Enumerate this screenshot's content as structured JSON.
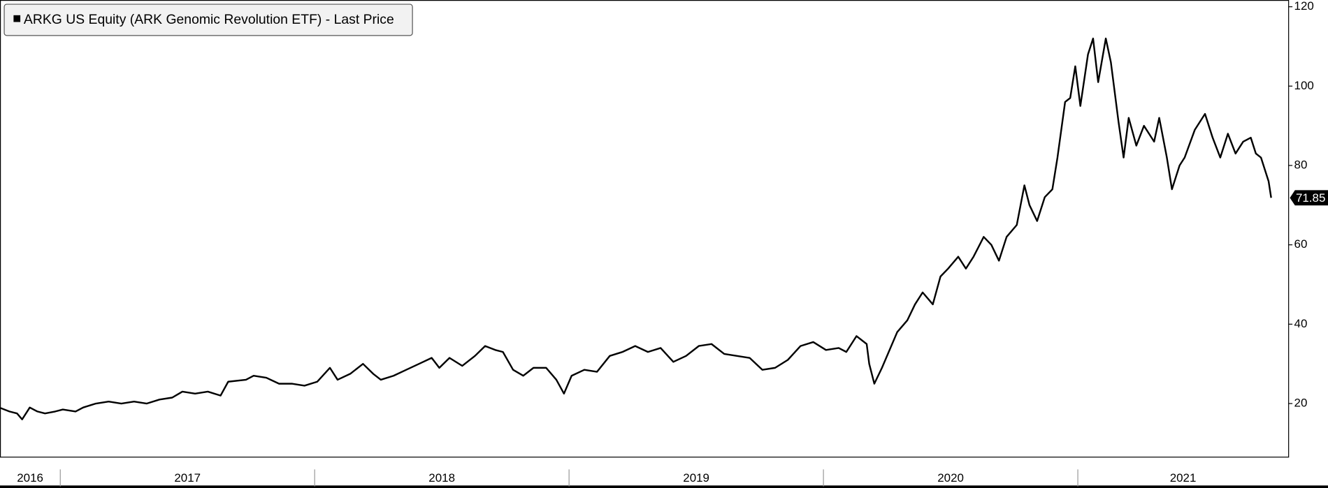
{
  "chart_data": {
    "type": "line",
    "x": [
      2016.76,
      2016.8,
      2016.83,
      2016.85,
      2016.88,
      2016.91,
      2016.94,
      2016.98,
      2017.01,
      2017.06,
      2017.09,
      2017.14,
      2017.19,
      2017.24,
      2017.29,
      2017.34,
      2017.39,
      2017.44,
      2017.48,
      2017.53,
      2017.58,
      2017.63,
      2017.66,
      2017.73,
      2017.76,
      2017.81,
      2017.86,
      2017.91,
      2017.96,
      2018.01,
      2018.06,
      2018.09,
      2018.14,
      2018.19,
      2018.23,
      2018.26,
      2018.31,
      2018.36,
      2018.41,
      2018.46,
      2018.49,
      2018.53,
      2018.58,
      2018.63,
      2018.67,
      2018.71,
      2018.74,
      2018.78,
      2018.82,
      2018.86,
      2018.91,
      2018.95,
      2018.98,
      2019.01,
      2019.06,
      2019.11,
      2019.16,
      2019.21,
      2019.26,
      2019.31,
      2019.36,
      2019.41,
      2019.46,
      2019.51,
      2019.56,
      2019.61,
      2019.66,
      2019.71,
      2019.76,
      2019.81,
      2019.86,
      2019.91,
      2019.96,
      2020.01,
      2020.06,
      2020.09,
      2020.13,
      2020.17,
      2020.18,
      2020.2,
      2020.23,
      2020.25,
      2020.29,
      2020.33,
      2020.36,
      2020.39,
      2020.43,
      2020.46,
      2020.49,
      2020.53,
      2020.56,
      2020.59,
      2020.63,
      2020.66,
      2020.69,
      2020.72,
      2020.76,
      2020.79,
      2020.81,
      2020.84,
      2020.87,
      2020.9,
      2020.92,
      2020.95,
      2020.97,
      2020.99,
      2021.01,
      2021.04,
      2021.06,
      2021.08,
      2021.11,
      2021.13,
      2021.16,
      2021.18,
      2021.2,
      2021.23,
      2021.26,
      2021.3,
      2021.32,
      2021.35,
      2021.37,
      2021.4,
      2021.42,
      2021.46,
      2021.5,
      2021.53,
      2021.56,
      2021.59,
      2021.62,
      2021.65,
      2021.68,
      2021.7,
      2021.72,
      2021.75,
      2021.76
    ],
    "series": [
      {
        "name": "ARKG US Equity (ARK Genomic Revolution ETF) - Last Price",
        "color": "#000000",
        "values": [
          19,
          18,
          17.5,
          16,
          19,
          18,
          17.5,
          18,
          18.5,
          18,
          19,
          20,
          20.5,
          20,
          20.5,
          20,
          21,
          21.5,
          23,
          22.5,
          23,
          22,
          25.5,
          26,
          27,
          26.5,
          25,
          25,
          24.5,
          25.5,
          29,
          26,
          27.5,
          30,
          27.5,
          26,
          27,
          28.5,
          30,
          31.5,
          29,
          31.5,
          29.5,
          32,
          34.5,
          33.5,
          33,
          28.5,
          27,
          29,
          29,
          26,
          22.5,
          27,
          28.5,
          28,
          32,
          33,
          34.5,
          33,
          34,
          30.5,
          32,
          34.5,
          35,
          32.5,
          32,
          31.5,
          28.5,
          29,
          31,
          34.5,
          35.5,
          33.5,
          34,
          33,
          37,
          35,
          30,
          25,
          29,
          32,
          38,
          41,
          45,
          48,
          45,
          52,
          54,
          57,
          54,
          57,
          62,
          60,
          56,
          62,
          65,
          75,
          70,
          66,
          72,
          74,
          82,
          96,
          97,
          105,
          95,
          108,
          112,
          101,
          112,
          106,
          91,
          82,
          92,
          85,
          90,
          86,
          92,
          82,
          74,
          80,
          82,
          89,
          93,
          87,
          82,
          88,
          83,
          86,
          87,
          83,
          82,
          76,
          71.85
        ]
      }
    ],
    "xlim": [
      2016.763,
      2021.827
    ],
    "xticks": [
      2016,
      2017,
      2018,
      2019,
      2020,
      2021
    ],
    "ylim": [
      6.6,
      121.7
    ],
    "yticks": [
      20,
      40,
      60,
      80,
      100,
      120
    ]
  }
}
